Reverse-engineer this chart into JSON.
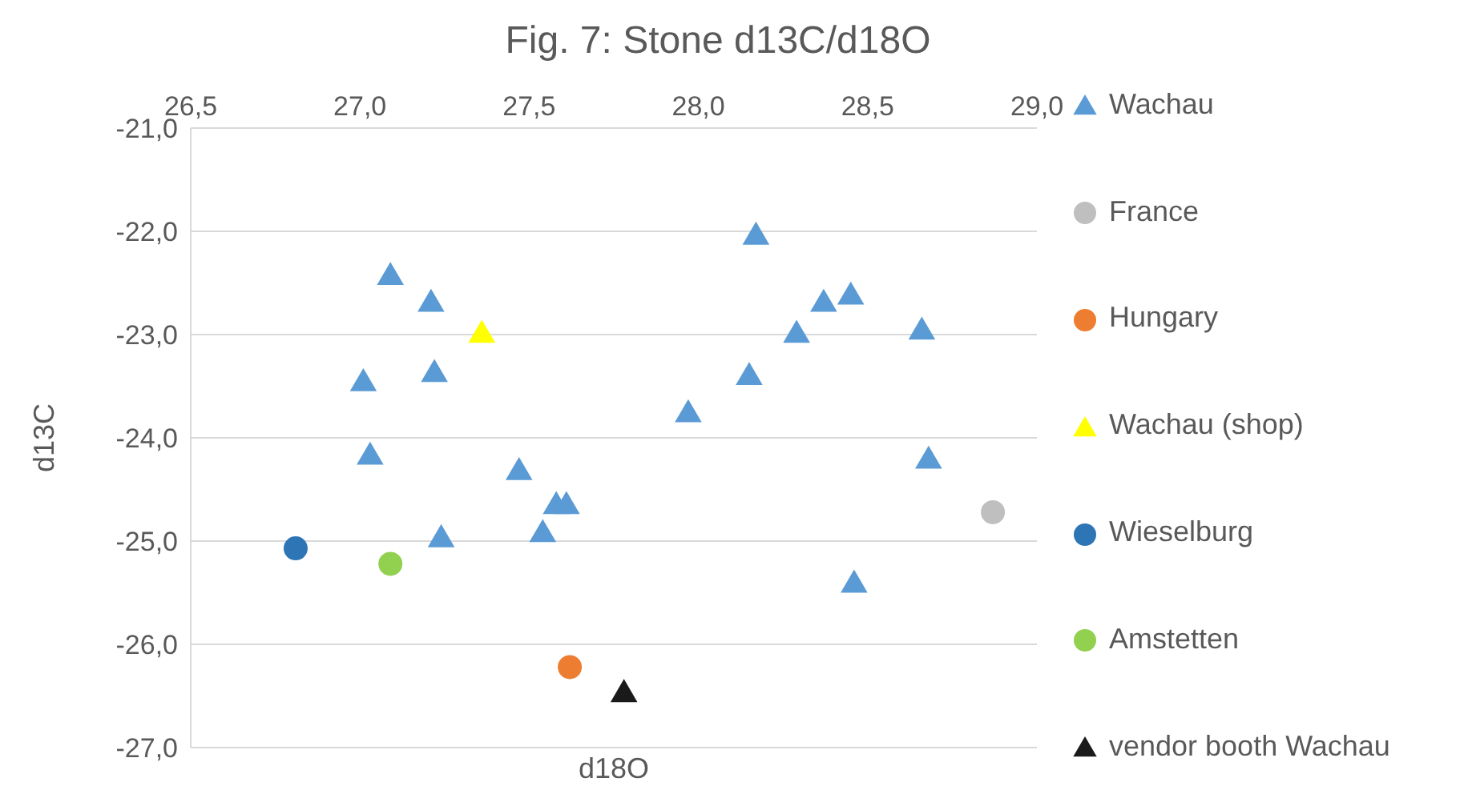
{
  "chart_data": {
    "type": "scatter",
    "title": "Fig. 7: Stone d13C/d18O",
    "xlabel": "d18O",
    "ylabel": "d13C",
    "xlim": [
      26.5,
      29.0
    ],
    "xticks": [
      {
        "value": 26.5,
        "label": "26,5"
      },
      {
        "value": 27.0,
        "label": "27,0"
      },
      {
        "value": 27.5,
        "label": "27,5"
      },
      {
        "value": 28.0,
        "label": "28,0"
      },
      {
        "value": 28.5,
        "label": "28,5"
      },
      {
        "value": 29.0,
        "label": "29,0"
      }
    ],
    "ylim": [
      -27,
      -21
    ],
    "yticks": [
      {
        "value": -21,
        "label": "-21,0"
      },
      {
        "value": -22,
        "label": "-22,0"
      },
      {
        "value": -23,
        "label": "-23,0"
      },
      {
        "value": -24,
        "label": "-24,0"
      },
      {
        "value": -25,
        "label": "-25,0"
      },
      {
        "value": -26,
        "label": "-26,0"
      },
      {
        "value": -27,
        "label": "-27,0"
      }
    ],
    "grid": "y",
    "legend": "right",
    "series": [
      {
        "name": "Wachau",
        "color": "#5b9bd5",
        "marker": "triangle",
        "x": [
          27.09,
          27.21,
          27.01,
          27.22,
          27.03,
          27.47,
          27.58,
          27.61,
          27.54,
          27.24,
          28.17,
          28.37,
          28.45,
          28.29,
          28.66,
          28.15,
          27.97,
          28.68,
          28.46
        ],
        "values": [
          -22.42,
          -22.68,
          -23.45,
          -23.36,
          -24.16,
          -24.31,
          -24.64,
          -24.64,
          -24.91,
          -24.96,
          -22.03,
          -22.68,
          -22.61,
          -22.98,
          -22.95,
          -23.39,
          -23.75,
          -24.2,
          -25.4
        ]
      },
      {
        "name": "France",
        "color": "#bfbfbf",
        "marker": "circle",
        "x": [
          28.87
        ],
        "values": [
          -24.72
        ]
      },
      {
        "name": "Hungary",
        "color": "#ed7d31",
        "marker": "circle",
        "x": [
          27.62
        ],
        "values": [
          -26.22
        ]
      },
      {
        "name": "Wachau (shop)",
        "color": "#ffff00",
        "marker": "triangle",
        "x": [
          27.36
        ],
        "values": [
          -22.98
        ]
      },
      {
        "name": "Wieselburg",
        "color": "#2e75b6",
        "marker": "circle",
        "x": [
          26.81
        ],
        "values": [
          -25.07
        ]
      },
      {
        "name": "Amstetten",
        "color": "#92d050",
        "marker": "circle",
        "x": [
          27.09
        ],
        "values": [
          -25.22
        ]
      },
      {
        "name": "vendor booth Wachau",
        "color": "#1a1a1a",
        "marker": "triangle",
        "x": [
          27.78
        ],
        "values": [
          -26.46
        ]
      }
    ]
  }
}
